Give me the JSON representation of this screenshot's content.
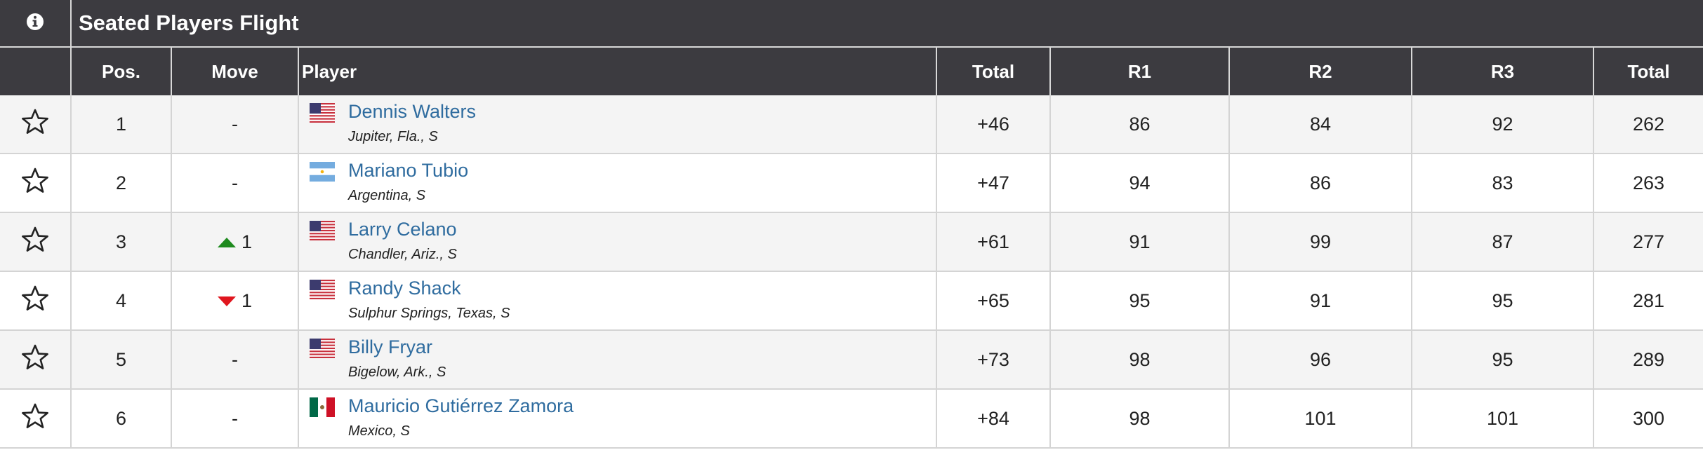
{
  "header": {
    "title": "Seated Players Flight"
  },
  "table": {
    "columns": [
      "Pos.",
      "Move",
      "Player",
      "Total",
      "R1",
      "R2",
      "R3",
      "Total"
    ],
    "rows": [
      {
        "pos": 1,
        "move": "-",
        "player": "Dennis Walters",
        "location": "Jupiter, Fla., S",
        "to_par": "+46",
        "r1": 86,
        "r2": 84,
        "r3": 92,
        "total": 262
      },
      {
        "pos": 2,
        "move": "-",
        "player": "Mariano Tubio",
        "location": "Argentina, S",
        "to_par": "+47",
        "r1": 94,
        "r2": 86,
        "r3": 83,
        "total": 263
      },
      {
        "pos": 3,
        "move": "1",
        "player": "Larry Celano",
        "location": "Chandler, Ariz., S",
        "to_par": "+61",
        "r1": 91,
        "r2": 99,
        "r3": 87,
        "total": 277
      },
      {
        "pos": 4,
        "move": "1",
        "player": "Randy Shack",
        "location": "Sulphur Springs, Texas, S",
        "to_par": "+65",
        "r1": 95,
        "r2": 91,
        "r3": 95,
        "total": 281
      },
      {
        "pos": 5,
        "move": "-",
        "player": "Billy Fryar",
        "location": "Bigelow, Ark., S",
        "to_par": "+73",
        "r1": 98,
        "r2": 96,
        "r3": 95,
        "total": 289
      },
      {
        "pos": 6,
        "move": "-",
        "player": "Mauricio Gutiérrez Zamora",
        "location": "Mexico, S",
        "to_par": "+84",
        "r1": 98,
        "r2": 101,
        "r3": 101,
        "total": 300
      }
    ]
  }
}
